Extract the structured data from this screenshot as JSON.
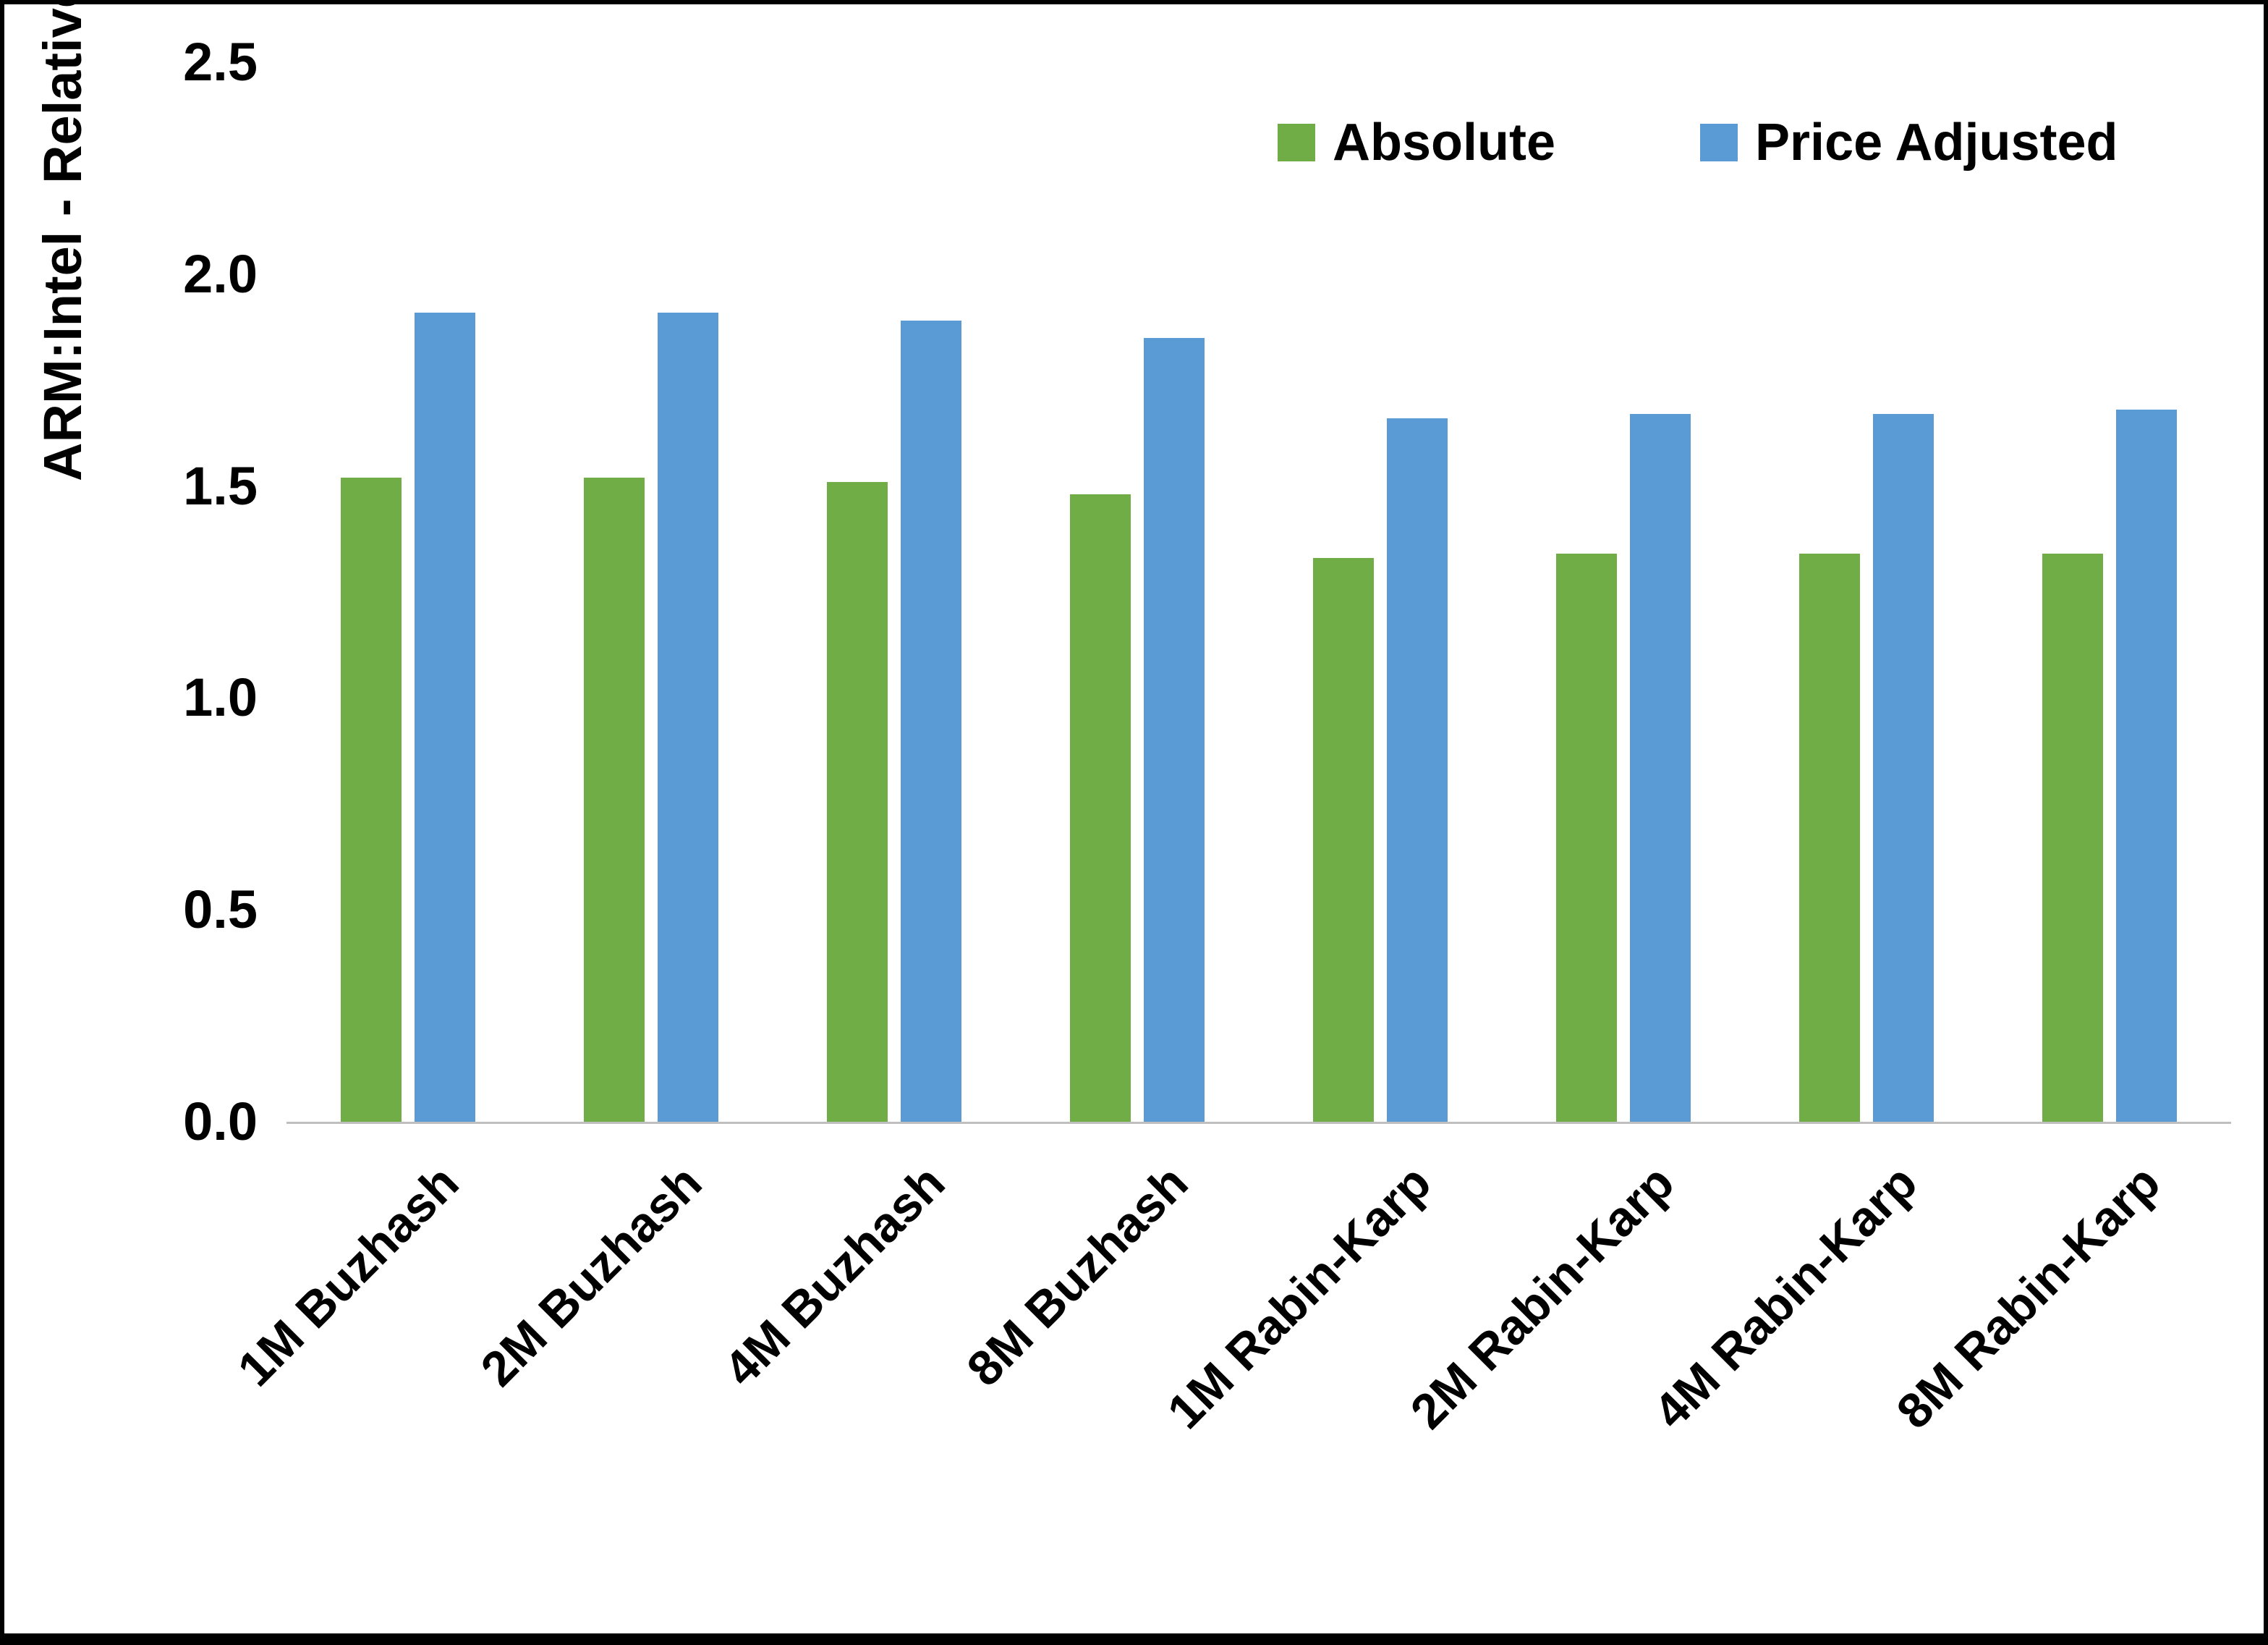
{
  "chart_data": {
    "type": "bar",
    "title": "",
    "xlabel": "",
    "ylabel": "ARM:Intel - Relative Performance",
    "ylim": [
      0,
      2.5
    ],
    "ytick_labels": [
      "0.0",
      "0.5",
      "1.0",
      "1.5",
      "2.0",
      "2.5"
    ],
    "ytick_values": [
      0,
      0.5,
      1.0,
      1.5,
      2.0,
      2.5
    ],
    "categories": [
      "1M Buzhash",
      "2M Buzhash",
      "4M Buzhash",
      "8M Buzhash",
      "1M Rabin-Karp",
      "2M Rabin-Karp",
      "4M Rabin-Karp",
      "8M Rabin-Karp"
    ],
    "series": [
      {
        "name": "Absolute",
        "color": "#70AD47",
        "values": [
          1.52,
          1.52,
          1.51,
          1.48,
          1.33,
          1.34,
          1.34,
          1.34
        ]
      },
      {
        "name": "Price Adjusted",
        "color": "#5B9BD5",
        "values": [
          1.91,
          1.91,
          1.89,
          1.85,
          1.66,
          1.67,
          1.67,
          1.68
        ]
      }
    ],
    "legend_position": "top-right",
    "grid": false,
    "axis_line_color": "#BFBFBF",
    "text_color": "#000000",
    "background_color": "#FFFFFF"
  }
}
